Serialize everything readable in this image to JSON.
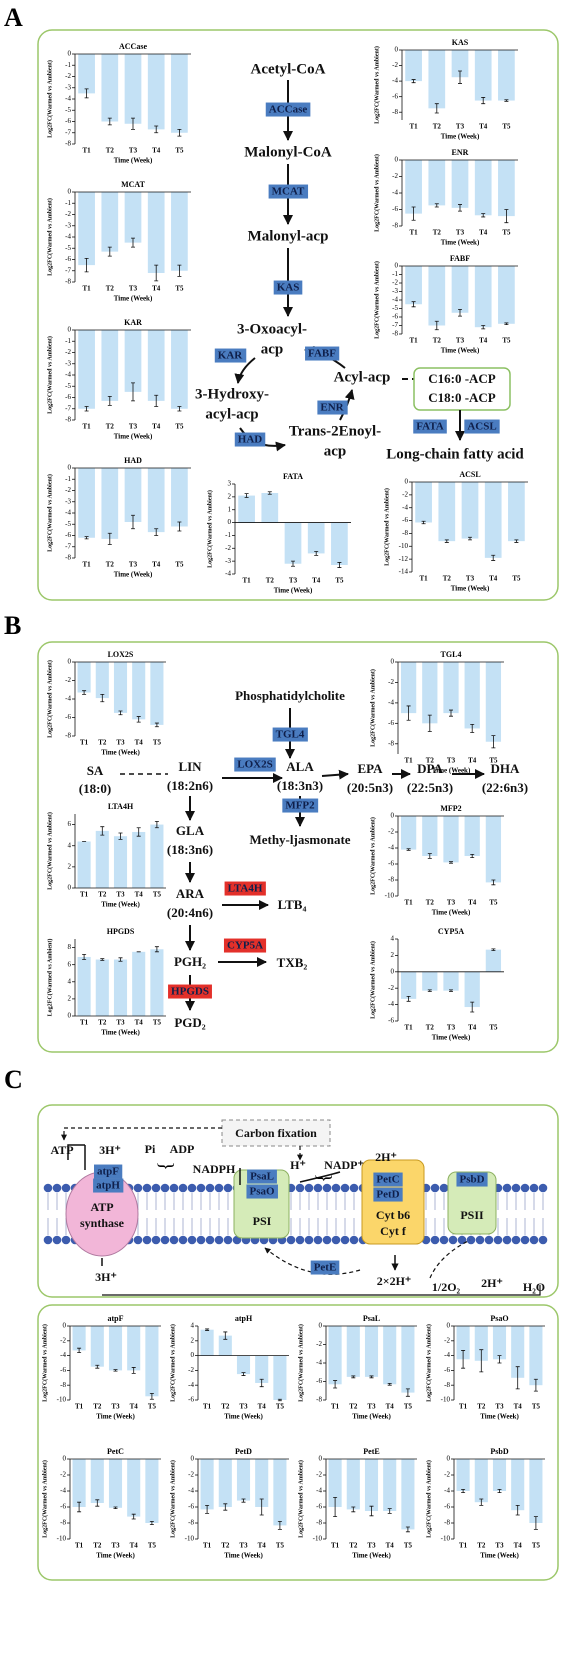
{
  "panel_a": {
    "label": "A",
    "nodes": [
      [
        "Acetyl-CoA"
      ],
      [
        "Malonyl-CoA"
      ],
      [
        "Malonyl-acp"
      ],
      [
        "3-Oxoacyl-",
        "acp"
      ],
      [
        "3-Hydroxy-",
        "acyl-acp"
      ],
      [
        "Trans-2Enoyl-",
        "acp"
      ],
      [
        "Acyl-acp"
      ],
      [
        "C16:0 -ACP",
        "C18:0 -ACP"
      ],
      [
        "Long-chain fatty acid"
      ]
    ],
    "enzymes": [
      {
        "name": "ACCase",
        "color": "#4a7cc0"
      },
      {
        "name": "MCAT",
        "color": "#4a7cc0"
      },
      {
        "name": "KAS",
        "color": "#4a7cc0"
      },
      {
        "name": "KAR",
        "color": "#4a7cc0"
      },
      {
        "name": "FABF",
        "color": "#4a7cc0"
      },
      {
        "name": "ENR",
        "color": "#4a7cc0"
      },
      {
        "name": "HAD",
        "color": "#4a7cc0"
      },
      {
        "name": "FATA",
        "color": "#4a7cc0"
      },
      {
        "name": "ACSL",
        "color": "#4a7cc0"
      }
    ]
  },
  "panel_b": {
    "label": "B",
    "nodes": [
      [
        "Phosphatidylcholite"
      ],
      [
        "SA",
        "(18:0)"
      ],
      [
        "LIN",
        "(18:2n6)"
      ],
      [
        "ALA",
        "(18:3n3)"
      ],
      [
        "EPA",
        "(20:5n3)"
      ],
      [
        "DPA",
        "(22:5n3)"
      ],
      [
        "DHA",
        "(22:6n3)"
      ],
      [
        "Methy-ljasmonate"
      ],
      [
        "GLA",
        "(18:3n6)"
      ],
      [
        "ARA",
        "(20:4n6)"
      ],
      [
        "LTB₄"
      ],
      [
        "TXB₂"
      ],
      [
        "PGH₂"
      ],
      [
        "PGD₂"
      ]
    ],
    "enzymes": [
      {
        "name": "TGL4",
        "color": "#4a7cc0"
      },
      {
        "name": "LOX2S",
        "color": "#4a7cc0"
      },
      {
        "name": "MFP2",
        "color": "#4a7cc0"
      },
      {
        "name": "LTA4H",
        "color": "#e3302a"
      },
      {
        "name": "CYP5A",
        "color": "#e3302a"
      },
      {
        "name": "HPGDS",
        "color": "#e3302a"
      }
    ]
  },
  "panel_c": {
    "label": "C",
    "nodes": [
      "Carbon fixation",
      "ATP",
      "3H⁺",
      "Pi",
      "ADP",
      "NADPH",
      "H⁺",
      "NADP⁺",
      "2H⁺",
      "ATP",
      "synthase",
      "PSI",
      "Cyt b6",
      "Cyt f",
      "PSII",
      "3H⁺",
      "2×2H⁺",
      "1/2O₂",
      "2H⁺",
      "H₂O"
    ],
    "enzymes": [
      {
        "name": "atpF",
        "color": "#4a7cc0"
      },
      {
        "name": "atpH",
        "color": "#4a7cc0"
      },
      {
        "name": "PsaL",
        "color": "#4a7cc0"
      },
      {
        "name": "PsaO",
        "color": "#4a7cc0"
      },
      {
        "name": "PetC",
        "color": "#4a7cc0"
      },
      {
        "name": "PetD",
        "color": "#4a7cc0"
      },
      {
        "name": "PsbD",
        "color": "#4a7cc0"
      },
      {
        "name": "PetE",
        "color": "#4a7cc0"
      }
    ]
  },
  "chart_data": [
    {
      "type": "bar",
      "title": "ACCase",
      "y_label": "Log2FC(Warmed vs Ambient)",
      "x_label": "Time (Week)",
      "categories": [
        "T1",
        "T2",
        "T3",
        "T4",
        "T5"
      ],
      "values": [
        -3.5,
        -6,
        -6.2,
        -6.7,
        -7
      ],
      "errors": [
        0.4,
        0.3,
        0.5,
        0.3,
        0.3
      ],
      "color": "#c4e1f5",
      "ylim": [
        -8,
        0
      ],
      "yticks": [
        0,
        -1,
        -2,
        -3,
        -4,
        -5,
        -6,
        -7,
        -8
      ]
    },
    {
      "type": "bar",
      "title": "MCAT",
      "y_label": "Log2FC(Warmed vs Ambient)",
      "x_label": "Time (Week)",
      "categories": [
        "T1",
        "T2",
        "T3",
        "T4",
        "T5"
      ],
      "values": [
        -6.5,
        -5.3,
        -4.5,
        -7.2,
        -7
      ],
      "errors": [
        0.6,
        0.4,
        0.4,
        0.7,
        0.5
      ],
      "color": "#c4e1f5",
      "ylim": [
        -8,
        0
      ],
      "yticks": [
        0,
        -1,
        -2,
        -3,
        -4,
        -5,
        -6,
        -7,
        -8
      ]
    },
    {
      "type": "bar",
      "title": "KAR",
      "y_label": "Log2FC(Warmed vs Ambient)",
      "x_label": "Time (Week)",
      "categories": [
        "T1",
        "T2",
        "T3",
        "T4",
        "T5"
      ],
      "values": [
        -7,
        -6.3,
        -5.5,
        -6.3,
        -7
      ],
      "errors": [
        0.2,
        0.4,
        0.8,
        0.5,
        0.2
      ],
      "color": "#c4e1f5",
      "ylim": [
        -8,
        0
      ],
      "yticks": [
        0,
        -1,
        -2,
        -3,
        -4,
        -5,
        -6,
        -7,
        -8
      ]
    },
    {
      "type": "bar",
      "title": "HAD",
      "y_label": "Log2FC(Warmed vs Ambient)",
      "x_label": "Time (Week)",
      "categories": [
        "T1",
        "T2",
        "T3",
        "T4",
        "T5"
      ],
      "values": [
        -6.2,
        -6.3,
        -4.8,
        -5.7,
        -5.2
      ],
      "errors": [
        0.1,
        0.5,
        0.6,
        0.3,
        0.4
      ],
      "color": "#c4e1f5",
      "ylim": [
        -8,
        0
      ],
      "yticks": [
        0,
        -1,
        -2,
        -3,
        -4,
        -5,
        -6,
        -7,
        -8
      ]
    },
    {
      "type": "bar",
      "title": "FATA",
      "y_label": "Log2FC(Warmed vs Ambient)",
      "x_label": "Time (Week)",
      "categories": [
        "T1",
        "T2",
        "T3",
        "T4",
        "T5"
      ],
      "values": [
        2.1,
        2.3,
        -3.2,
        -2.4,
        -3.3
      ],
      "errors": [
        0.15,
        0.1,
        0.2,
        0.15,
        0.2
      ],
      "color": "#c4e1f5",
      "ylim": [
        -4,
        3
      ],
      "yticks": [
        3,
        2,
        1,
        0,
        -1,
        -2,
        -3,
        -4
      ]
    },
    {
      "type": "bar",
      "title": "KAS",
      "y_label": "Log2FC(Warmed vs Ambient)",
      "x_label": "Time (Week)",
      "categories": [
        "T1",
        "T2",
        "T3",
        "T4",
        "T5"
      ],
      "values": [
        -4,
        -7.5,
        -3.5,
        -6.5,
        -6.5
      ],
      "errors": [
        0.2,
        0.6,
        0.8,
        0.4,
        0.1
      ],
      "color": "#c4e1f5",
      "ylim": [
        -9,
        0
      ],
      "yticks": [
        0,
        -2,
        -4,
        -6,
        -8
      ]
    },
    {
      "type": "bar",
      "title": "ENR",
      "y_label": "Log2FC(Warmed vs Ambient)",
      "x_label": "Time (Week)",
      "categories": [
        "T1",
        "T2",
        "T3",
        "T4",
        "T5"
      ],
      "values": [
        -6.5,
        -5.5,
        -5.8,
        -6.7,
        -6.8
      ],
      "errors": [
        0.8,
        0.2,
        0.4,
        0.2,
        0.8
      ],
      "color": "#c4e1f5",
      "ylim": [
        -8,
        0
      ],
      "yticks": [
        0,
        -2,
        -4,
        -6,
        -8
      ]
    },
    {
      "type": "bar",
      "title": "FABF",
      "y_label": "Log2FC(Warmed vs Ambient)",
      "x_label": "Time (Week)",
      "categories": [
        "T1",
        "T2",
        "T3",
        "T4",
        "T5"
      ],
      "values": [
        -4.5,
        -7,
        -5.5,
        -7.2,
        -6.8
      ],
      "errors": [
        0.3,
        0.5,
        0.4,
        0.2,
        0.1
      ],
      "color": "#c4e1f5",
      "ylim": [
        -8,
        0
      ],
      "yticks": [
        0,
        -1,
        -2,
        -3,
        -4,
        -5,
        -6,
        -7,
        -8
      ]
    },
    {
      "type": "bar",
      "title": "ACSL",
      "y_label": "Log2FC(Warmed vs Ambient)",
      "x_label": "Time (Week)",
      "categories": [
        "T1",
        "T2",
        "T3",
        "T4",
        "T5"
      ],
      "values": [
        -6.3,
        -9.2,
        -8.8,
        -11.8,
        -9.2
      ],
      "errors": [
        0.2,
        0.2,
        0.2,
        0.4,
        0.2
      ],
      "color": "#c4e1f5",
      "ylim": [
        -14,
        0
      ],
      "yticks": [
        0,
        -2,
        -4,
        -6,
        -8,
        -10,
        -12,
        -14
      ]
    },
    {
      "type": "bar",
      "title": "LOX2S",
      "y_label": "Log2FC(Warmed vs Ambient)",
      "x_label": "Time (Week)",
      "categories": [
        "T1",
        "T2",
        "T3",
        "T4",
        "T5"
      ],
      "values": [
        -3.3,
        -3.9,
        -5.5,
        -6.2,
        -6.8
      ],
      "errors": [
        0.2,
        0.4,
        0.2,
        0.3,
        0.2
      ],
      "color": "#c4e1f5",
      "ylim": [
        -8,
        0
      ],
      "yticks": [
        0,
        -2,
        -4,
        -6,
        -8
      ]
    },
    {
      "type": "bar",
      "title": "LTA4H",
      "y_label": "Log2FC(Warmed vs Ambient)",
      "x_label": "Time (Week)",
      "categories": [
        "T1",
        "T2",
        "T3",
        "T4",
        "T5"
      ],
      "values": [
        4.4,
        5.4,
        4.9,
        5.3,
        6.0
      ],
      "errors": [
        0.0,
        0.4,
        0.3,
        0.4,
        0.3
      ],
      "color": "#c4e1f5",
      "ylim": [
        0,
        7
      ],
      "yticks": [
        0,
        2,
        4,
        6
      ]
    },
    {
      "type": "bar",
      "title": "HPGDS",
      "y_label": "Log2FC(Warmed vs Ambient)",
      "x_label": "Time (Week)",
      "categories": [
        "T1",
        "T2",
        "T3",
        "T4",
        "T5"
      ],
      "values": [
        6.9,
        6.6,
        6.6,
        7.5,
        7.8
      ],
      "errors": [
        0.3,
        0.1,
        0.2,
        0.0,
        0.3
      ],
      "color": "#c4e1f5",
      "ylim": [
        0,
        9
      ],
      "yticks": [
        0,
        2,
        4,
        6,
        8
      ]
    },
    {
      "type": "bar",
      "title": "TGL4",
      "y_label": "Log2FC(Warmed vs Ambient)",
      "x_label": "Time (Week)",
      "categories": [
        "T1",
        "T2",
        "T3",
        "T4",
        "T5"
      ],
      "values": [
        -5,
        -6,
        -5,
        -6.5,
        -7.8
      ],
      "errors": [
        0.7,
        0.8,
        0.3,
        0.4,
        0.6
      ],
      "color": "#c4e1f5",
      "ylim": [
        -9,
        0
      ],
      "yticks": [
        0,
        -2,
        -4,
        -6,
        -8
      ]
    },
    {
      "type": "bar",
      "title": "MFP2",
      "y_label": "Log2FC(Warmed vs Ambient)",
      "x_label": "Time (Week)",
      "categories": [
        "T1",
        "T2",
        "T3",
        "T4",
        "T5"
      ],
      "values": [
        -4.2,
        -5,
        -5.8,
        -5,
        -8.3
      ],
      "errors": [
        0.1,
        0.3,
        0.1,
        0.2,
        0.3
      ],
      "color": "#c4e1f5",
      "ylim": [
        -10,
        0
      ],
      "yticks": [
        0,
        -2,
        -4,
        -6,
        -8,
        -10
      ]
    },
    {
      "type": "bar",
      "title": "CYP5A",
      "y_label": "Log2FC(Warmed vs Ambient)",
      "x_label": "Time (Week)",
      "categories": [
        "T1",
        "T2",
        "T3",
        "T4",
        "T5"
      ],
      "values": [
        -3.3,
        -2.3,
        -2.3,
        -4.3,
        2.7
      ],
      "errors": [
        0.3,
        0.1,
        0.1,
        0.6,
        0.1
      ],
      "color": "#c4e1f5",
      "ylim": [
        -6,
        4
      ],
      "yticks": [
        4,
        2,
        0,
        -2,
        -4,
        -6
      ]
    },
    {
      "type": "bar",
      "title": "atpF",
      "y_label": "Log2FC(Warmed vs Ambient)",
      "x_label": "Time (Week)",
      "categories": [
        "T1",
        "T2",
        "T3",
        "T4",
        "T5"
      ],
      "values": [
        -3.3,
        -5.5,
        -6,
        -6,
        -9.5
      ],
      "errors": [
        0.3,
        0.2,
        0.1,
        0.4,
        0.4
      ],
      "color": "#c4e1f5",
      "ylim": [
        -10,
        0
      ],
      "yticks": [
        0,
        -2,
        -4,
        -6,
        -8,
        -10
      ]
    },
    {
      "type": "bar",
      "title": "atpH",
      "y_label": "Log2FC(Warmed vs Ambient)",
      "x_label": "Time (Week)",
      "categories": [
        "T1",
        "T2",
        "T3",
        "T4",
        "T5"
      ],
      "values": [
        3.5,
        2.7,
        -2.5,
        -3.7,
        -6
      ],
      "errors": [
        0.1,
        0.5,
        0.2,
        0.5,
        0.1
      ],
      "color": "#c4e1f5",
      "ylim": [
        -6,
        4
      ],
      "yticks": [
        4,
        2,
        0,
        -2,
        -4,
        -6
      ]
    },
    {
      "type": "bar",
      "title": "PsaL",
      "y_label": "Log2FC(Warmed vs Ambient)",
      "x_label": "Time (Week)",
      "categories": [
        "T1",
        "T2",
        "T3",
        "T4",
        "T5"
      ],
      "values": [
        -6.3,
        -5.5,
        -5.5,
        -6.3,
        -7.2
      ],
      "errors": [
        0.4,
        0.1,
        0.1,
        0.1,
        0.4
      ],
      "color": "#c4e1f5",
      "ylim": [
        -8,
        0
      ],
      "yticks": [
        0,
        -2,
        -4,
        -6,
        -8
      ]
    },
    {
      "type": "bar",
      "title": "PsaO",
      "y_label": "Log2FC(Warmed vs Ambient)",
      "x_label": "Time (Week)",
      "categories": [
        "T1",
        "T2",
        "T3",
        "T4",
        "T5"
      ],
      "values": [
        -4.5,
        -4.7,
        -4.5,
        -7,
        -8
      ],
      "errors": [
        1.2,
        1.5,
        0.5,
        1.5,
        0.8
      ],
      "color": "#c4e1f5",
      "ylim": [
        -10,
        0
      ],
      "yticks": [
        0,
        -2,
        -4,
        -6,
        -8,
        -10
      ]
    },
    {
      "type": "bar",
      "title": "PetC",
      "y_label": "Log2FC(Warmed vs Ambient)",
      "x_label": "Time (Week)",
      "categories": [
        "T1",
        "T2",
        "T3",
        "T4",
        "T5"
      ],
      "values": [
        -6,
        -5.5,
        -6.1,
        -7.2,
        -8
      ],
      "errors": [
        0.6,
        0.4,
        0.1,
        0.3,
        0.2
      ],
      "color": "#c4e1f5",
      "ylim": [
        -10,
        0
      ],
      "yticks": [
        0,
        -2,
        -4,
        -6,
        -8,
        -10
      ]
    },
    {
      "type": "bar",
      "title": "PetD",
      "y_label": "Log2FC(Warmed vs Ambient)",
      "x_label": "Time (Week)",
      "categories": [
        "T1",
        "T2",
        "T3",
        "T4",
        "T5"
      ],
      "values": [
        -6.3,
        -6,
        -5.2,
        -6,
        -8.3
      ],
      "errors": [
        0.5,
        0.4,
        0.2,
        1.0,
        0.5
      ],
      "color": "#c4e1f5",
      "ylim": [
        -10,
        0
      ],
      "yticks": [
        0,
        -2,
        -4,
        -6,
        -8,
        -10
      ]
    },
    {
      "type": "bar",
      "title": "PetE",
      "y_label": "Log2FC(Warmed vs Ambient)",
      "x_label": "Time (Week)",
      "categories": [
        "T1",
        "T2",
        "T3",
        "T4",
        "T5"
      ],
      "values": [
        -6,
        -6.3,
        -6.5,
        -6.5,
        -8.8
      ],
      "errors": [
        1.2,
        0.3,
        0.6,
        0.3,
        0.3
      ],
      "color": "#c4e1f5",
      "ylim": [
        -10,
        0
      ],
      "yticks": [
        0,
        -2,
        -4,
        -6,
        -8,
        -10
      ]
    },
    {
      "type": "bar",
      "title": "PsbD",
      "y_label": "Log2FC(Warmed vs Ambient)",
      "x_label": "Time (Week)",
      "categories": [
        "T1",
        "T2",
        "T3",
        "T4",
        "T5"
      ],
      "values": [
        -4,
        -5.4,
        -4,
        -6.4,
        -8
      ],
      "errors": [
        0.2,
        0.4,
        0.2,
        0.6,
        0.8
      ],
      "color": "#c4e1f5",
      "ylim": [
        -10,
        0
      ],
      "yticks": [
        0,
        -2,
        -4,
        -6,
        -8,
        -10
      ]
    }
  ]
}
